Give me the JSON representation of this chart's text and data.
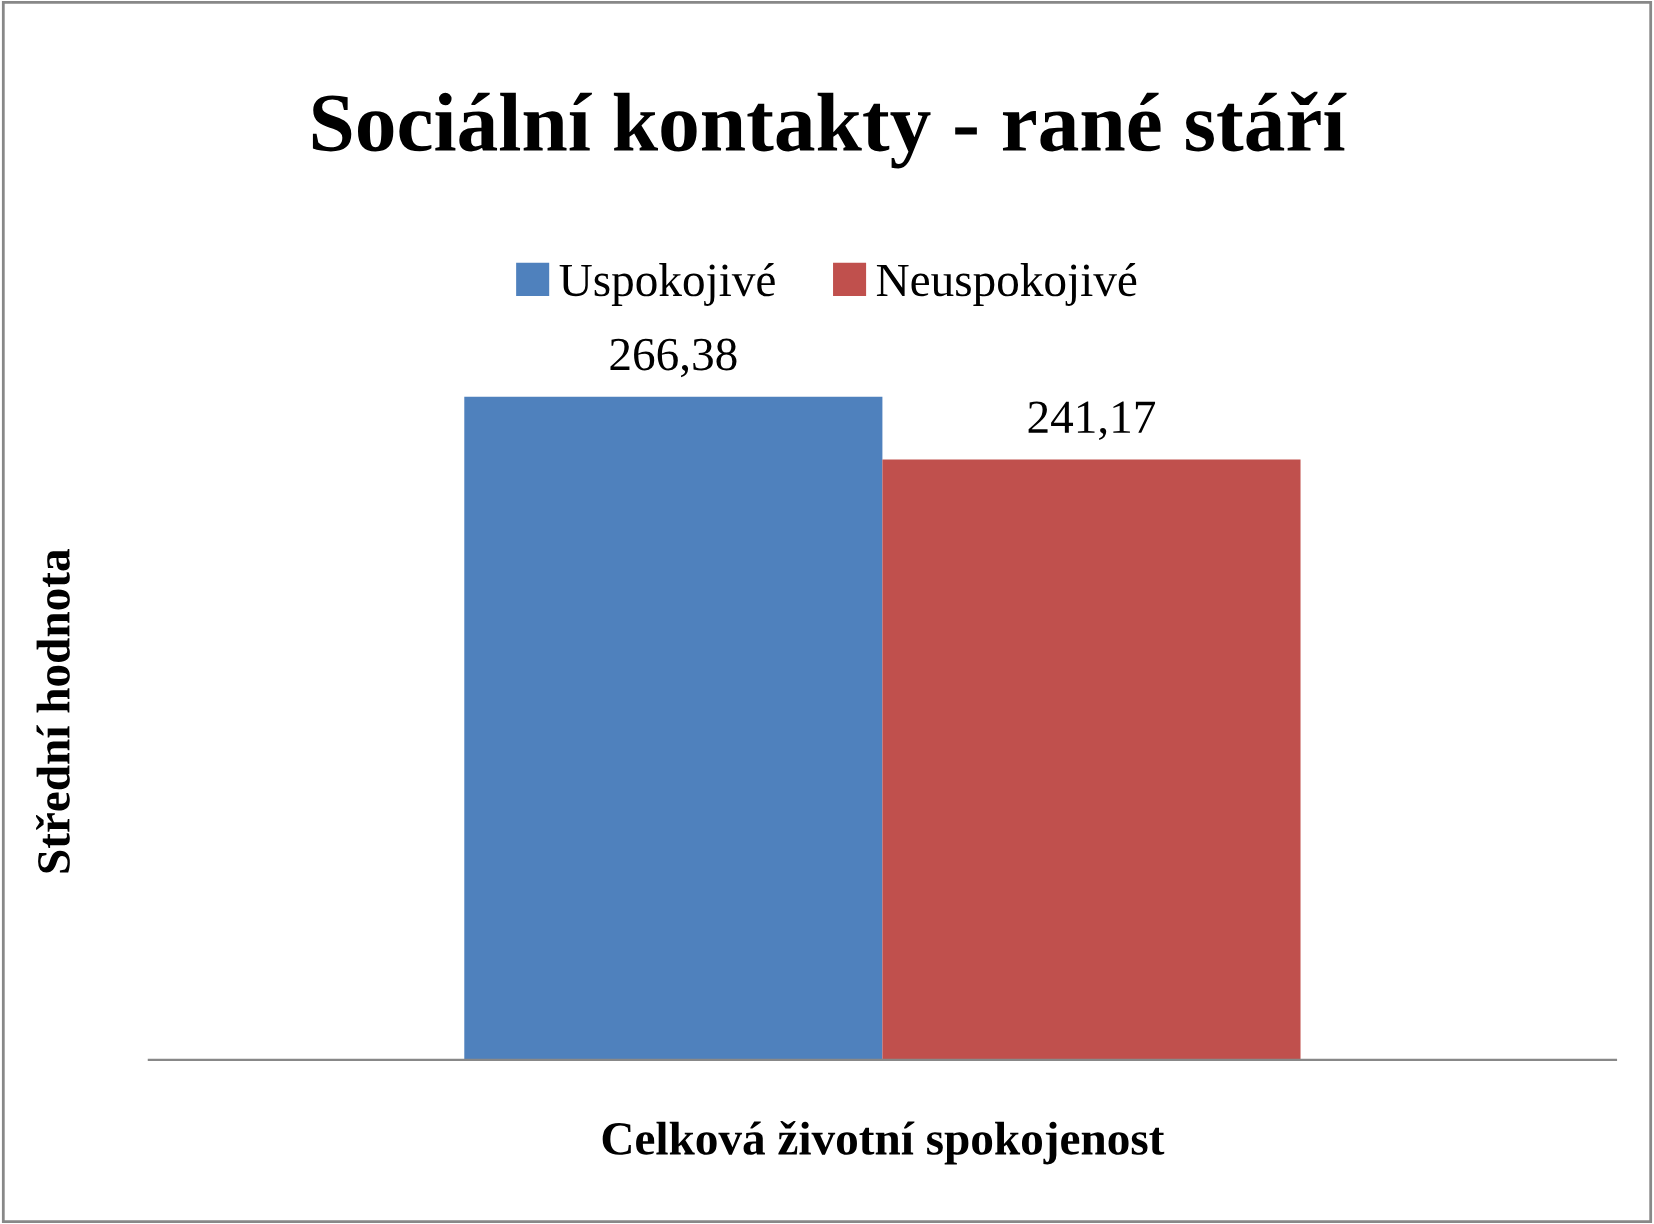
{
  "chart_data": {
    "type": "bar",
    "title": "Sociální kontakty - rané stáří",
    "xlabel": "Celková životní spokojenost",
    "ylabel": "Střední hodnota",
    "categories": [
      null
    ],
    "series": [
      {
        "name": "Uspokojivé",
        "color": "#4f81bd",
        "values": [
          266.38
        ],
        "value_labels": [
          "266,38"
        ]
      },
      {
        "name": "Neuspokojivé",
        "color": "#c0504d",
        "values": [
          241.17
        ],
        "value_labels": [
          "241,17"
        ]
      }
    ],
    "tick_labels": false,
    "legend": "top",
    "grid": false
  }
}
